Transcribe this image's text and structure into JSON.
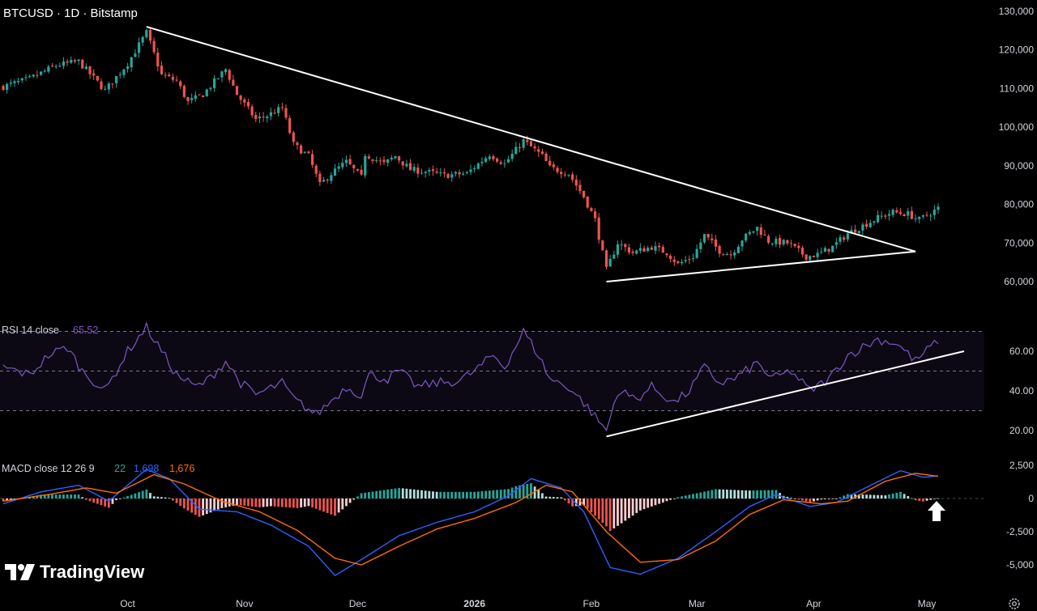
{
  "header": {
    "title": "BTCUSD · 1D · Bitstamp"
  },
  "colors": {
    "up": "#26a69a",
    "down": "#ef5350",
    "rsi": "#7e57c2",
    "macd": "#2962ff",
    "signal": "#ff6d00",
    "trend": "#ffffff"
  },
  "branding": {
    "logo_text": "TradingView",
    "logo_icon": "tradingview-logo-icon"
  },
  "footer": {
    "settings_icon": "gear-icon"
  },
  "chart_data": [
    {
      "type": "candlestick",
      "title": "BTCUSD · 1D · Bitstamp",
      "y_ticks": [
        "130,000",
        "120,000",
        "110,000",
        "100,000",
        "90,000",
        "80,000",
        "70,000",
        "60,000"
      ],
      "y_tick_values": [
        130000,
        120000,
        110000,
        100000,
        90000,
        80000,
        70000,
        60000
      ],
      "ylim": [
        56000,
        132000
      ],
      "x_ticks": [
        "Oct",
        "Nov",
        "Dec",
        "2026",
        "Feb",
        "Mar",
        "Apr",
        "May"
      ],
      "x_tick_dates": [
        "2025-10-01",
        "2025-11-01",
        "2025-12-01",
        "2026-01-01",
        "2026-02-01",
        "2026-03-01",
        "2026-04-01",
        "2026-05-01"
      ],
      "date_range": [
        "2025-08-29",
        "2026-05-04"
      ],
      "close_anchors": [
        [
          "2025-08-29",
          110500
        ],
        [
          "2025-09-05",
          112500
        ],
        [
          "2025-09-12",
          116000
        ],
        [
          "2025-09-18",
          117000
        ],
        [
          "2025-09-25",
          109500
        ],
        [
          "2025-10-01",
          116500
        ],
        [
          "2025-10-06",
          124500
        ],
        [
          "2025-10-10",
          113500
        ],
        [
          "2025-10-14",
          112000
        ],
        [
          "2025-10-17",
          106500
        ],
        [
          "2025-10-21",
          108500
        ],
        [
          "2025-10-27",
          115000
        ],
        [
          "2025-10-30",
          108500
        ],
        [
          "2025-11-04",
          102000
        ],
        [
          "2025-11-07",
          103000
        ],
        [
          "2025-11-11",
          105000
        ],
        [
          "2025-11-14",
          95500
        ],
        [
          "2025-11-18",
          92500
        ],
        [
          "2025-11-21",
          85000
        ],
        [
          "2025-11-24",
          88000
        ],
        [
          "2025-11-28",
          91000
        ],
        [
          "2025-12-02",
          87000
        ],
        [
          "2025-12-03",
          93000
        ],
        [
          "2025-12-08",
          90500
        ],
        [
          "2025-12-11",
          92500
        ],
        [
          "2025-12-15",
          89000
        ],
        [
          "2025-12-19",
          88500
        ],
        [
          "2025-12-24",
          87500
        ],
        [
          "2025-12-30",
          88000
        ],
        [
          "2026-01-05",
          93000
        ],
        [
          "2026-01-09",
          90500
        ],
        [
          "2026-01-14",
          96500
        ],
        [
          "2026-01-19",
          92500
        ],
        [
          "2026-01-21",
          89500
        ],
        [
          "2026-01-26",
          88000
        ],
        [
          "2026-01-30",
          82000
        ],
        [
          "2026-02-02",
          76000
        ],
        [
          "2026-02-05",
          63000
        ],
        [
          "2026-02-08",
          70000
        ],
        [
          "2026-02-12",
          67500
        ],
        [
          "2026-02-17",
          69000
        ],
        [
          "2026-02-21",
          67500
        ],
        [
          "2026-02-24",
          64500
        ],
        [
          "2026-02-28",
          66500
        ],
        [
          "2026-03-03",
          72000
        ],
        [
          "2026-03-07",
          68000
        ],
        [
          "2026-03-10",
          67000
        ],
        [
          "2026-03-13",
          71000
        ],
        [
          "2026-03-17",
          74000
        ],
        [
          "2026-03-20",
          70500
        ],
        [
          "2026-03-25",
          70000
        ],
        [
          "2026-03-30",
          66500
        ],
        [
          "2026-04-02",
          67000
        ],
        [
          "2026-04-06",
          69000
        ],
        [
          "2026-04-10",
          72500
        ],
        [
          "2026-04-14",
          74500
        ],
        [
          "2026-04-18",
          76500
        ],
        [
          "2026-04-22",
          78000
        ],
        [
          "2026-04-26",
          77500
        ],
        [
          "2026-04-29",
          76000
        ],
        [
          "2026-05-04",
          79000
        ]
      ],
      "trendlines": [
        {
          "from": [
            "2025-10-06",
            126000
          ],
          "to": [
            "2026-04-28",
            67800
          ]
        },
        {
          "from": [
            "2026-02-05",
            60000
          ],
          "to": [
            "2026-04-28",
            67800
          ]
        }
      ]
    },
    {
      "type": "line",
      "name": "RSI",
      "label": "RSI 14 close",
      "last_value": "65.52",
      "y_ticks": [
        "60.00",
        "40.00",
        "20.00"
      ],
      "y_tick_values": [
        60,
        40,
        20
      ],
      "ylim": [
        10,
        75
      ],
      "band": [
        30,
        70
      ],
      "midline": 50,
      "anchors": [
        [
          "2025-08-29",
          52
        ],
        [
          "2025-09-05",
          48
        ],
        [
          "2025-09-10",
          58
        ],
        [
          "2025-09-15",
          62
        ],
        [
          "2025-09-19",
          50
        ],
        [
          "2025-09-25",
          40
        ],
        [
          "2025-10-01",
          60
        ],
        [
          "2025-10-06",
          72
        ],
        [
          "2025-10-10",
          60
        ],
        [
          "2025-10-14",
          48
        ],
        [
          "2025-10-19",
          42
        ],
        [
          "2025-10-22",
          45
        ],
        [
          "2025-10-27",
          55
        ],
        [
          "2025-10-31",
          44
        ],
        [
          "2025-11-04",
          38
        ],
        [
          "2025-11-11",
          44
        ],
        [
          "2025-11-14",
          36
        ],
        [
          "2025-11-20",
          28
        ],
        [
          "2025-11-24",
          35
        ],
        [
          "2025-11-28",
          42
        ],
        [
          "2025-12-02",
          38
        ],
        [
          "2025-12-04",
          48
        ],
        [
          "2025-12-09",
          46
        ],
        [
          "2025-12-12",
          50
        ],
        [
          "2025-12-17",
          42
        ],
        [
          "2025-12-22",
          44
        ],
        [
          "2025-12-28",
          45
        ],
        [
          "2026-01-01",
          50
        ],
        [
          "2026-01-06",
          58
        ],
        [
          "2026-01-09",
          52
        ],
        [
          "2026-01-14",
          70
        ],
        [
          "2026-01-18",
          58
        ],
        [
          "2026-01-21",
          46
        ],
        [
          "2026-01-26",
          42
        ],
        [
          "2026-01-30",
          34
        ],
        [
          "2026-02-05",
          20
        ],
        [
          "2026-02-08",
          40
        ],
        [
          "2026-02-13",
          36
        ],
        [
          "2026-02-17",
          42
        ],
        [
          "2026-02-23",
          34
        ],
        [
          "2026-02-27",
          40
        ],
        [
          "2026-03-03",
          52
        ],
        [
          "2026-03-07",
          44
        ],
        [
          "2026-03-11",
          46
        ],
        [
          "2026-03-17",
          54
        ],
        [
          "2026-03-21",
          46
        ],
        [
          "2026-03-26",
          50
        ],
        [
          "2026-03-31",
          40
        ],
        [
          "2026-04-05",
          46
        ],
        [
          "2026-04-10",
          58
        ],
        [
          "2026-04-14",
          62
        ],
        [
          "2026-04-18",
          66
        ],
        [
          "2026-04-23",
          64
        ],
        [
          "2026-04-28",
          55
        ],
        [
          "2026-05-04",
          65.52
        ]
      ],
      "trendline": {
        "from": [
          "2026-02-05",
          17
        ],
        "to": [
          "2026-05-06",
          60
        ]
      }
    },
    {
      "type": "bar+line",
      "name": "MACD",
      "label": "MACD close 12 26 9",
      "values_shown": [
        "22",
        "1,698",
        "1,676"
      ],
      "y_ticks": [
        "2,500",
        "0",
        "-2,500",
        "-5,000"
      ],
      "y_tick_values": [
        2500,
        0,
        -2500,
        -5000
      ],
      "ylim": [
        -6000,
        3000
      ],
      "macd_anchors": [
        [
          "2025-08-29",
          -400
        ],
        [
          "2025-09-08",
          500
        ],
        [
          "2025-09-18",
          1000
        ],
        [
          "2025-09-26",
          -200
        ],
        [
          "2025-10-06",
          2200
        ],
        [
          "2025-10-12",
          1500
        ],
        [
          "2025-10-20",
          -800
        ],
        [
          "2025-10-30",
          -1000
        ],
        [
          "2025-11-08",
          -2000
        ],
        [
          "2025-11-18",
          -3600
        ],
        [
          "2025-11-25",
          -5800
        ],
        [
          "2025-12-02",
          -4600
        ],
        [
          "2025-12-12",
          -2800
        ],
        [
          "2025-12-22",
          -1800
        ],
        [
          "2026-01-01",
          -1000
        ],
        [
          "2026-01-10",
          200
        ],
        [
          "2026-01-16",
          1500
        ],
        [
          "2026-01-24",
          800
        ],
        [
          "2026-01-30",
          -1000
        ],
        [
          "2026-02-06",
          -5200
        ],
        [
          "2026-02-14",
          -5700
        ],
        [
          "2026-02-24",
          -4500
        ],
        [
          "2026-03-06",
          -2500
        ],
        [
          "2026-03-15",
          -600
        ],
        [
          "2026-03-22",
          300
        ],
        [
          "2026-03-31",
          -600
        ],
        [
          "2026-04-07",
          -300
        ],
        [
          "2026-04-14",
          700
        ],
        [
          "2026-04-24",
          2100
        ],
        [
          "2026-04-30",
          1600
        ],
        [
          "2026-05-04",
          1698
        ]
      ],
      "signal_anchors": [
        [
          "2025-08-29",
          -200
        ],
        [
          "2025-09-10",
          300
        ],
        [
          "2025-09-20",
          800
        ],
        [
          "2025-09-28",
          400
        ],
        [
          "2025-10-08",
          1800
        ],
        [
          "2025-10-16",
          1100
        ],
        [
          "2025-10-26",
          -200
        ],
        [
          "2025-11-05",
          -1000
        ],
        [
          "2025-11-15",
          -2400
        ],
        [
          "2025-11-25",
          -4500
        ],
        [
          "2025-12-02",
          -5000
        ],
        [
          "2025-12-12",
          -3600
        ],
        [
          "2025-12-22",
          -2300
        ],
        [
          "2026-01-01",
          -1500
        ],
        [
          "2026-01-12",
          -300
        ],
        [
          "2026-01-20",
          1000
        ],
        [
          "2026-01-27",
          500
        ],
        [
          "2026-02-05",
          -2500
        ],
        [
          "2026-02-14",
          -4800
        ],
        [
          "2026-02-24",
          -4600
        ],
        [
          "2026-03-06",
          -3200
        ],
        [
          "2026-03-15",
          -1200
        ],
        [
          "2026-03-24",
          -100
        ],
        [
          "2026-04-03",
          -400
        ],
        [
          "2026-04-10",
          -200
        ],
        [
          "2026-04-20",
          1300
        ],
        [
          "2026-04-28",
          1900
        ],
        [
          "2026-05-04",
          1676
        ]
      ]
    }
  ]
}
